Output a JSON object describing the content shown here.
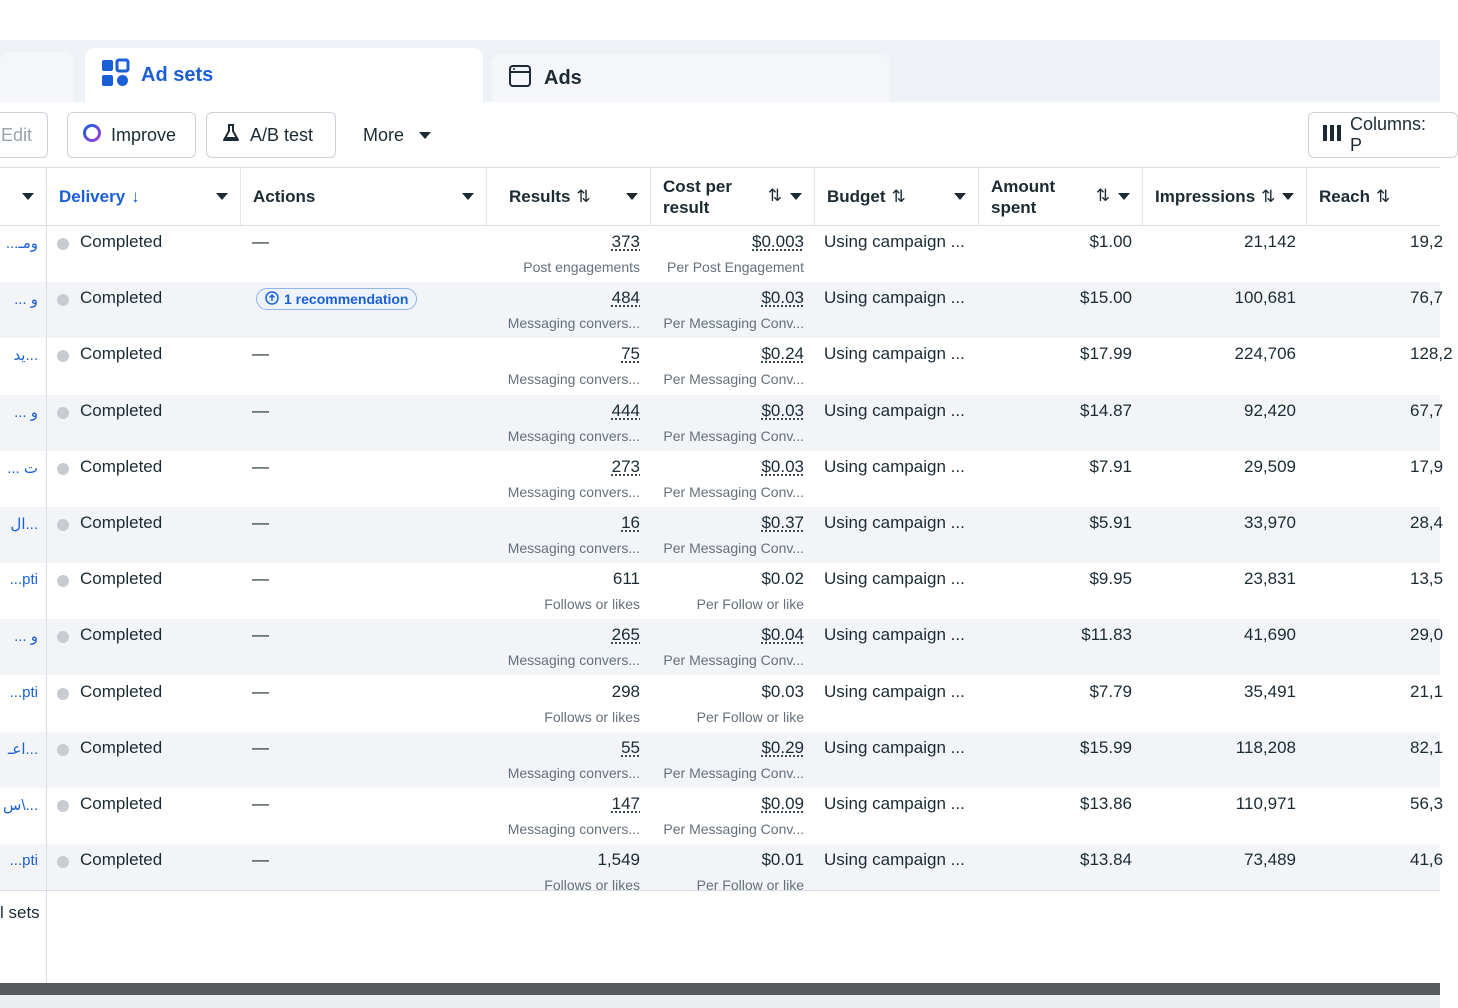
{
  "tabs": {
    "adsets_label": "Ad sets",
    "ads_label": "Ads"
  },
  "toolbar": {
    "edit_label": "Edit",
    "improve_label": "Improve",
    "ab_label": "A/B test",
    "more_label": "More",
    "columns_label": "Columns: P"
  },
  "headers": {
    "delivery": "Delivery",
    "delivery_sort": "↓",
    "actions": "Actions",
    "results": "Results",
    "cost_line1": "Cost per",
    "cost_line2": "result",
    "budget": "Budget",
    "amount_line1": "Amount",
    "amount_line2": "spent",
    "impressions": "Impressions",
    "reach": "Reach",
    "sort_glyph": "⇅"
  },
  "rows": [
    {
      "name": "ومـ...",
      "delivery": "Completed",
      "actions": "—",
      "results": "373",
      "results_sub": "Post engagements",
      "cost": "$0.003",
      "cost_sub": "Per Post Engagement",
      "budget": "Using campaign ...",
      "amount": "$1.00",
      "impressions": "21,142",
      "reach": "19,2"
    },
    {
      "name": "و ...",
      "delivery": "Completed",
      "actions": "",
      "recommendation": "1 recommendation",
      "results": "484",
      "results_sub": "Messaging convers...",
      "cost": "$0.03",
      "cost_sub": "Per Messaging Conv...",
      "budget": "Using campaign ...",
      "amount": "$15.00",
      "impressions": "100,681",
      "reach": "76,7"
    },
    {
      "name": "...يد",
      "delivery": "Completed",
      "actions": "—",
      "results": "75",
      "results_sub": "Messaging convers...",
      "cost": "$0.24",
      "cost_sub": "Per Messaging Conv...",
      "budget": "Using campaign ...",
      "amount": "$17.99",
      "impressions": "224,706",
      "reach": "128,2"
    },
    {
      "name": "و ...",
      "delivery": "Completed",
      "actions": "—",
      "results": "444",
      "results_sub": "Messaging convers...",
      "cost": "$0.03",
      "cost_sub": "Per Messaging Conv...",
      "budget": "Using campaign ...",
      "amount": "$14.87",
      "impressions": "92,420",
      "reach": "67,7"
    },
    {
      "name": "ت ...",
      "delivery": "Completed",
      "actions": "—",
      "results": "273",
      "results_sub": "Messaging convers...",
      "cost": "$0.03",
      "cost_sub": "Per Messaging Conv...",
      "budget": "Using campaign ...",
      "amount": "$7.91",
      "impressions": "29,509",
      "reach": "17,9"
    },
    {
      "name": "...ال",
      "delivery": "Completed",
      "actions": "—",
      "results": "16",
      "results_sub": "Messaging convers...",
      "cost": "$0.37",
      "cost_sub": "Per Messaging Conv...",
      "budget": "Using campaign ...",
      "amount": "$5.91",
      "impressions": "33,970",
      "reach": "28,4"
    },
    {
      "name": "pti...",
      "delivery": "Completed",
      "actions": "—",
      "results": "611",
      "results_sub": "Follows or likes",
      "cost": "$0.02",
      "cost_sub": "Per Follow or like",
      "budget": "Using campaign ...",
      "amount": "$9.95",
      "impressions": "23,831",
      "reach": "13,5"
    },
    {
      "name": "و ...",
      "delivery": "Completed",
      "actions": "—",
      "results": "265",
      "results_sub": "Messaging convers...",
      "cost": "$0.04",
      "cost_sub": "Per Messaging Conv...",
      "budget": "Using campaign ...",
      "amount": "$11.83",
      "impressions": "41,690",
      "reach": "29,0"
    },
    {
      "name": "pti...",
      "delivery": "Completed",
      "actions": "—",
      "results": "298",
      "results_sub": "Follows or likes",
      "cost": "$0.03",
      "cost_sub": "Per Follow or like",
      "budget": "Using campaign ...",
      "amount": "$7.79",
      "impressions": "35,491",
      "reach": "21,1"
    },
    {
      "name": "...اعـ",
      "delivery": "Completed",
      "actions": "—",
      "results": "55",
      "results_sub": "Messaging convers...",
      "cost": "$0.29",
      "cost_sub": "Per Messaging Conv...",
      "budget": "Using campaign ...",
      "amount": "$15.99",
      "impressions": "118,208",
      "reach": "82,1"
    },
    {
      "name": "...\\س",
      "delivery": "Completed",
      "actions": "—",
      "results": "147",
      "results_sub": "Messaging convers...",
      "cost": "$0.09",
      "cost_sub": "Per Messaging Conv...",
      "budget": "Using campaign ...",
      "amount": "$13.86",
      "impressions": "110,971",
      "reach": "56,3"
    },
    {
      "name": "pti...",
      "delivery": "Completed",
      "actions": "—",
      "results": "1,549",
      "results_sub": "Follows or likes",
      "cost": "$0.01",
      "cost_sub": "Per Follow or like",
      "budget": "Using campaign ...",
      "amount": "$13.84",
      "impressions": "73,489",
      "reach": "41,6"
    }
  ],
  "underlined_rows": [
    0,
    1,
    2,
    3,
    4,
    5,
    7,
    9,
    10
  ],
  "footer": {
    "label": "l sets"
  },
  "colors": {
    "accent": "#1a5fd6",
    "status_dot": "#c8ccd1",
    "alt_row": "#f2f4f7"
  }
}
